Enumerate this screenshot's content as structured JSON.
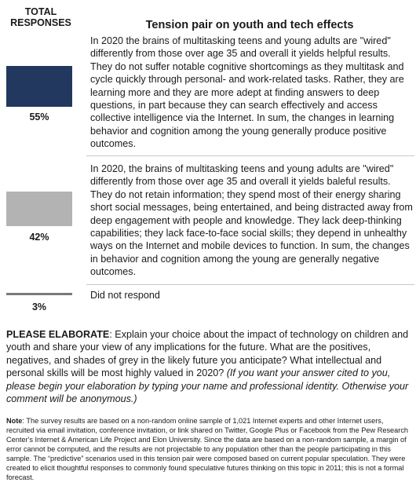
{
  "header": {
    "column_title": "TOTAL RESPONSES",
    "title": "Tension pair on youth and tech effects"
  },
  "responses": [
    {
      "percent": "55%",
      "value": 55,
      "color": "#22385f",
      "text": "In 2020 the brains of multitasking teens and young adults are \"wired\" differently from those over age 35 and overall it yields helpful results. They do not suffer notable cognitive shortcomings as they multitask and cycle quickly through personal- and work-related tasks. Rather, they are learning more and they are more adept at finding answers to deep questions, in part because they can search effectively and access collective intelligence via the Internet. In sum, the changes in learning behavior and cognition among the young generally produce positive outcomes."
    },
    {
      "percent": "42%",
      "value": 42,
      "color": "#b3b3b3",
      "text": "In 2020, the brains of multitasking teens and young adults are \"wired\" differently from those over age 35 and overall it yields baleful results. They do not retain information; they spend most of their energy sharing short social messages, being entertained, and being distracted away from deep engagement with people and knowledge. They lack deep-thinking capabilities; they lack face-to-face social skills; they depend in unhealthy ways on the Internet and mobile devices to function. In sum, the changes in behavior and cognition among the young are generally negative outcomes."
    },
    {
      "percent": "3%",
      "value": 3,
      "color": "#7a7a7a",
      "text": "Did not respond"
    }
  ],
  "elaborate": {
    "label": "PLEASE ELABORATE",
    "text": ": Explain your choice about the impact of technology on children and youth and share your view of any implications for the future. What are the positives, negatives, and shades of grey in the likely future you anticipate? What intellectual and personal skills will be most highly valued in 2020? ",
    "italic": "(If you want your answer cited to you, please begin your elaboration by typing your name and professional identity. Otherwise your comment will be anonymous.)"
  },
  "note": {
    "label": "Note",
    "text": ": The survey results are based on a non-random online sample of 1,021 Internet experts and other Internet users, recruited via email invitation, conference invitation, or link shared on Twitter, Google Plus or Facebook from the Pew Research Center's Internet & American Life Project and Elon University. Since the data are based on a non-random sample, a margin of error cannot be computed, and the results are not projectable to any population other than the people participating in this sample. The “predictive” scenarios used in this tension pair were composed based on current popular speculation. They were created to elicit thoughtful responses to commonly found speculative futures thinking on this topic in 2011; this is not a formal forecast."
  }
}
